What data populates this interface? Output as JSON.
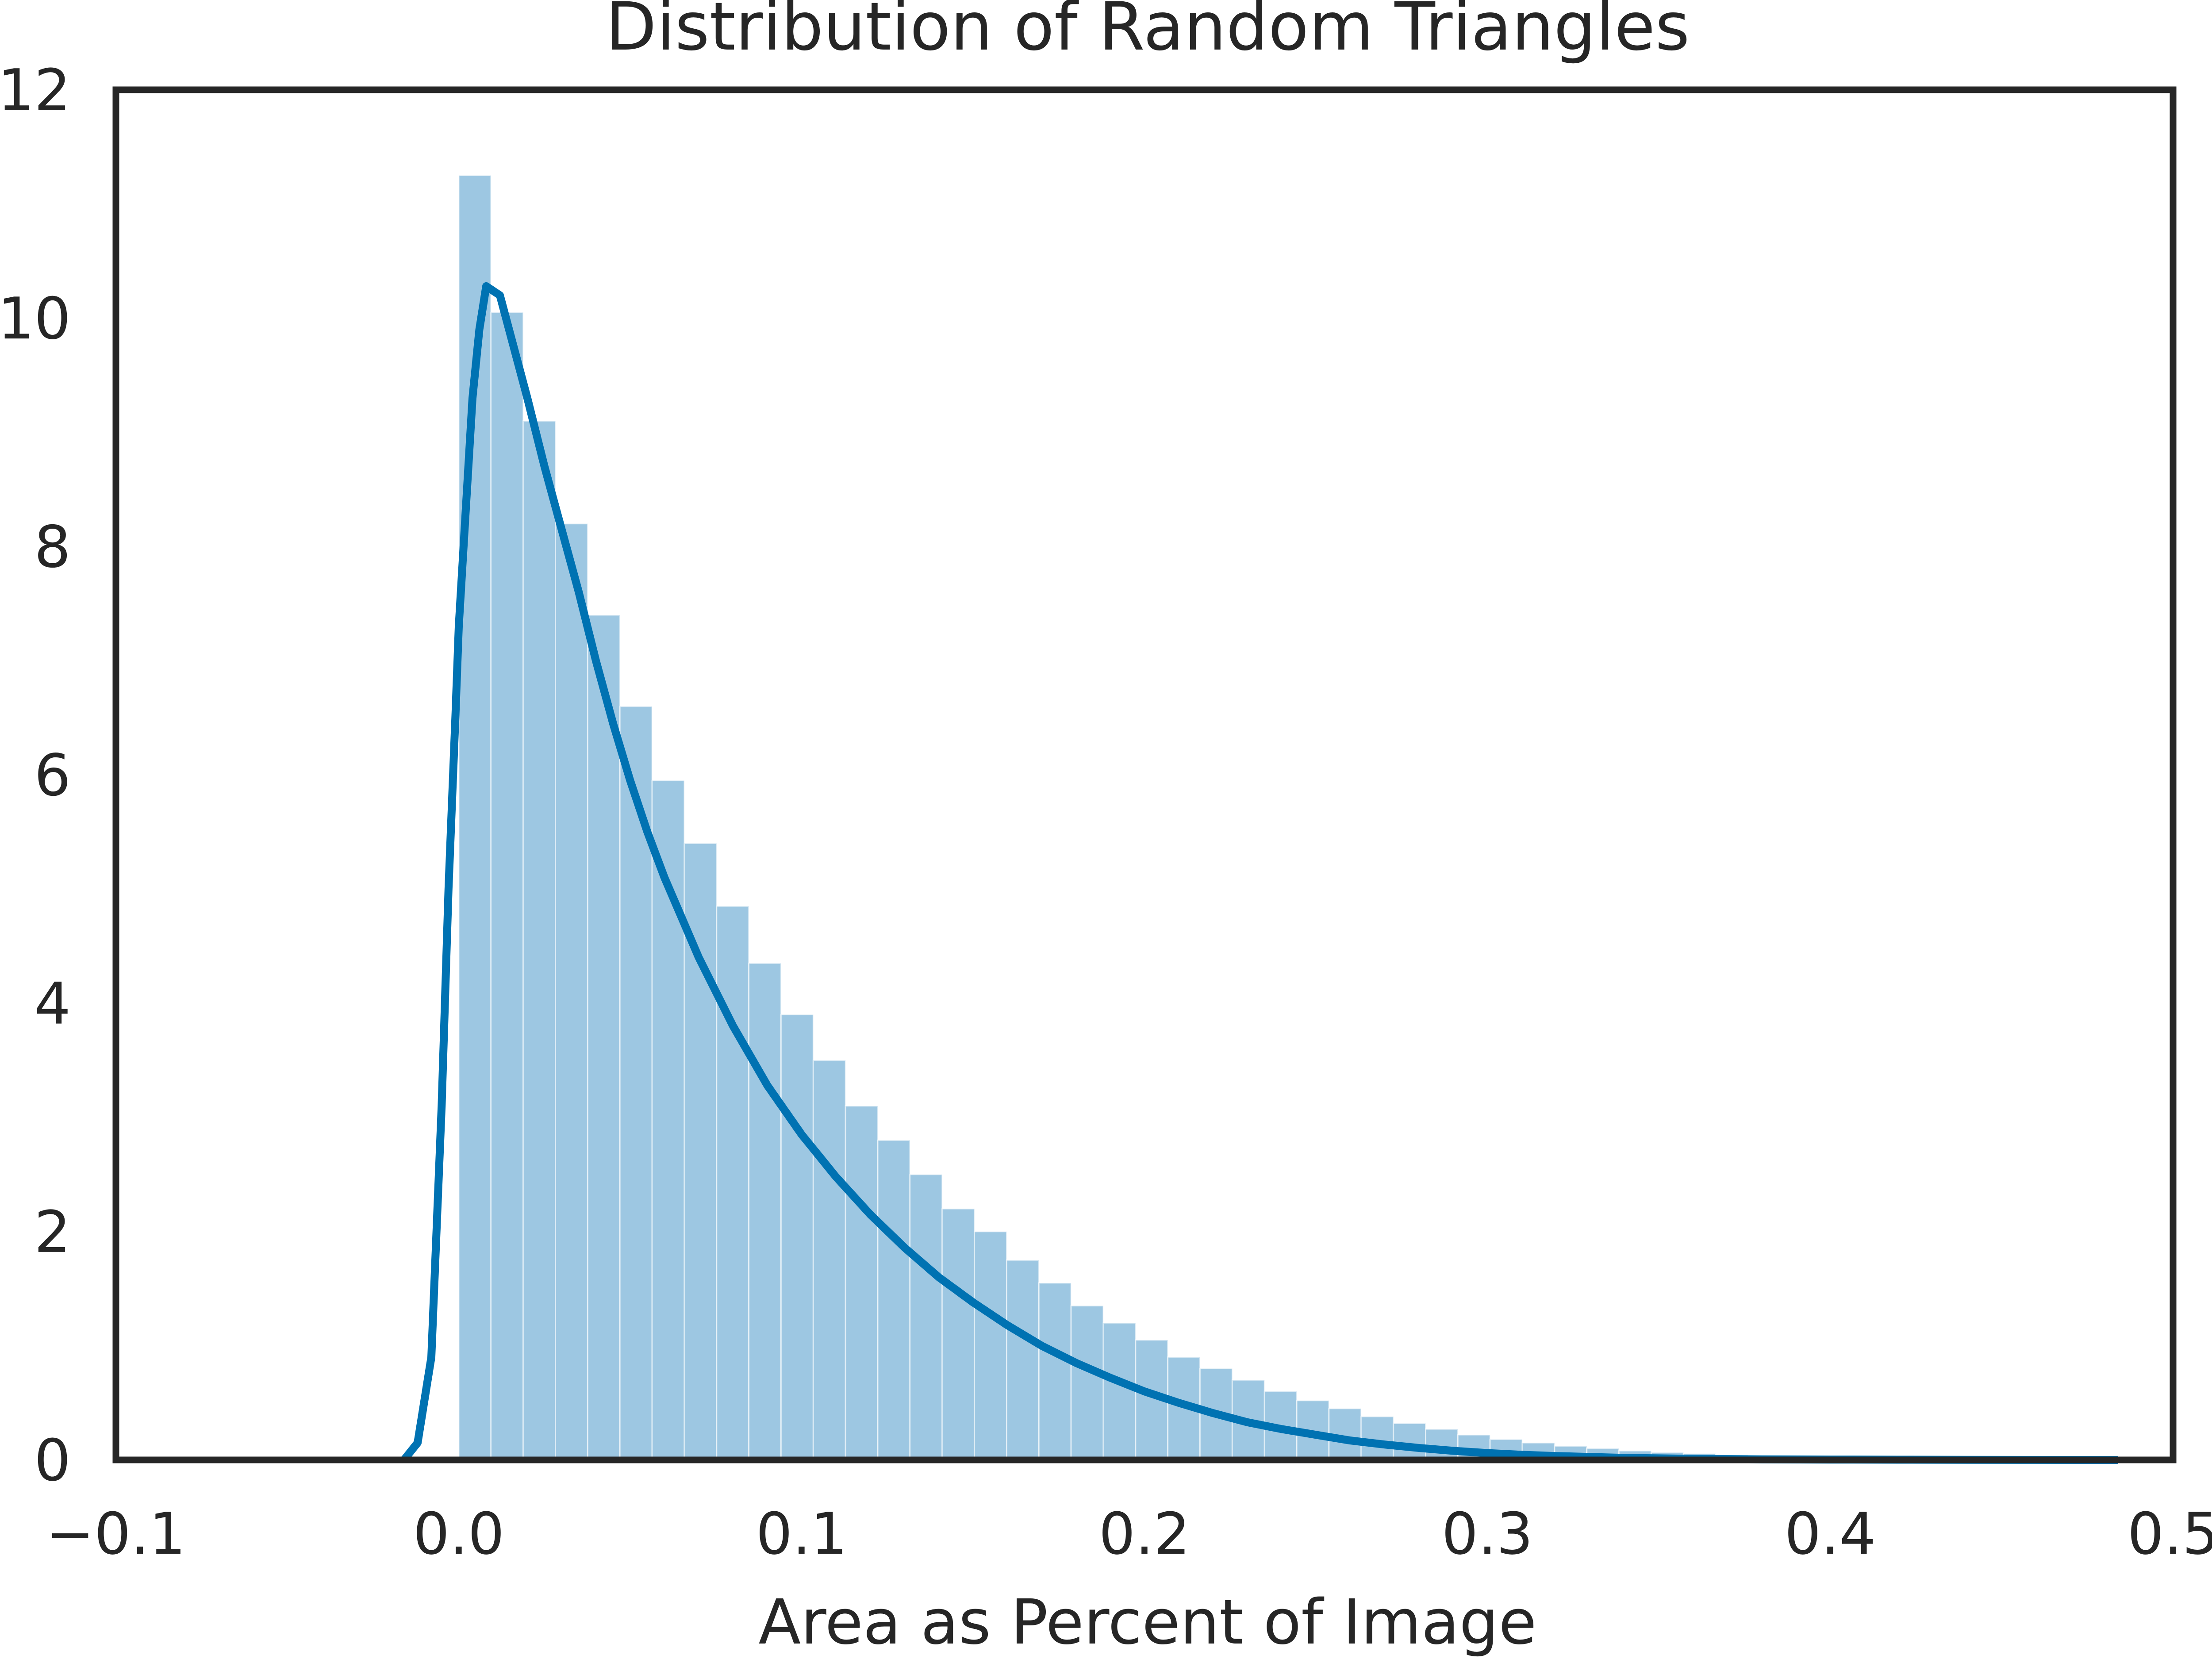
{
  "chart_data": {
    "type": "bar",
    "title": "Distribution of Random Triangles",
    "xlabel": "Area as Percent of Image",
    "ylabel": "",
    "xlim": [
      -0.1,
      0.5
    ],
    "ylim": [
      0,
      12
    ],
    "xticks": [
      -0.1,
      0.0,
      0.1,
      0.2,
      0.3,
      0.4,
      0.5
    ],
    "xtick_labels": [
      "−0.1",
      "0.0",
      "0.1",
      "0.2",
      "0.3",
      "0.4",
      "0.5"
    ],
    "yticks": [
      0,
      2,
      4,
      6,
      8,
      10,
      12
    ],
    "ytick_labels": [
      "0",
      "2",
      "4",
      "6",
      "8",
      "10",
      "12"
    ],
    "grid": false,
    "legend": "none",
    "histogram": {
      "bin_width": 0.0094,
      "bin_starts": [
        0.0,
        0.0094,
        0.0188,
        0.0282,
        0.0376,
        0.047,
        0.0564,
        0.0658,
        0.0752,
        0.0846,
        0.094,
        0.1034,
        0.1128,
        0.1222,
        0.1316,
        0.141,
        0.1504,
        0.1598,
        0.1692,
        0.1786,
        0.188,
        0.1974,
        0.2068,
        0.2162,
        0.2256,
        0.235,
        0.2444,
        0.2538,
        0.2632,
        0.2726,
        0.282,
        0.2914,
        0.3008,
        0.3102,
        0.3196,
        0.329,
        0.3384,
        0.3478,
        0.3572,
        0.3666,
        0.376,
        0.3854,
        0.3948,
        0.4042,
        0.4136,
        0.423,
        0.4324,
        0.4418,
        0.4512,
        0.4606,
        0.47,
        0.4794
      ],
      "values": [
        11.25,
        10.05,
        9.1,
        8.2,
        7.4,
        6.6,
        5.95,
        5.4,
        4.85,
        4.35,
        3.9,
        3.5,
        3.1,
        2.8,
        2.5,
        2.2,
        2.0,
        1.75,
        1.55,
        1.35,
        1.2,
        1.05,
        0.9,
        0.8,
        0.7,
        0.6,
        0.52,
        0.45,
        0.38,
        0.32,
        0.27,
        0.22,
        0.18,
        0.15,
        0.12,
        0.1,
        0.08,
        0.065,
        0.055,
        0.045,
        0.035,
        0.028,
        0.022,
        0.018,
        0.014,
        0.011,
        0.009,
        0.007,
        0.005,
        0.004,
        0.003,
        0.002
      ],
      "color": "#9dc7e2"
    },
    "kde": {
      "x": [
        -0.016,
        -0.012,
        -0.008,
        -0.005,
        -0.003,
        -0.001,
        0.0,
        0.002,
        0.004,
        0.006,
        0.008,
        0.012,
        0.016,
        0.02,
        0.025,
        0.03,
        0.035,
        0.04,
        0.045,
        0.05,
        0.055,
        0.06,
        0.065,
        0.07,
        0.08,
        0.09,
        0.1,
        0.11,
        0.12,
        0.13,
        0.14,
        0.15,
        0.16,
        0.17,
        0.18,
        0.19,
        0.2,
        0.21,
        0.22,
        0.23,
        0.24,
        0.25,
        0.26,
        0.27,
        0.28,
        0.29,
        0.3,
        0.31,
        0.32,
        0.34,
        0.36,
        0.38,
        0.4,
        0.42,
        0.44,
        0.46,
        0.484
      ],
      "y": [
        0.0,
        0.15,
        0.9,
        3.1,
        5.0,
        6.5,
        7.3,
        8.3,
        9.3,
        9.9,
        10.28,
        10.2,
        9.75,
        9.3,
        8.7,
        8.15,
        7.6,
        7.0,
        6.45,
        5.95,
        5.5,
        5.1,
        4.75,
        4.4,
        3.8,
        3.28,
        2.85,
        2.48,
        2.15,
        1.86,
        1.6,
        1.38,
        1.18,
        1.0,
        0.85,
        0.72,
        0.6,
        0.5,
        0.41,
        0.33,
        0.27,
        0.22,
        0.17,
        0.135,
        0.105,
        0.08,
        0.06,
        0.045,
        0.034,
        0.018,
        0.01,
        0.005,
        0.003,
        0.002,
        0.001,
        0.0005,
        0.0
      ],
      "color": "#0072b2"
    },
    "axes_color": "#262626"
  }
}
